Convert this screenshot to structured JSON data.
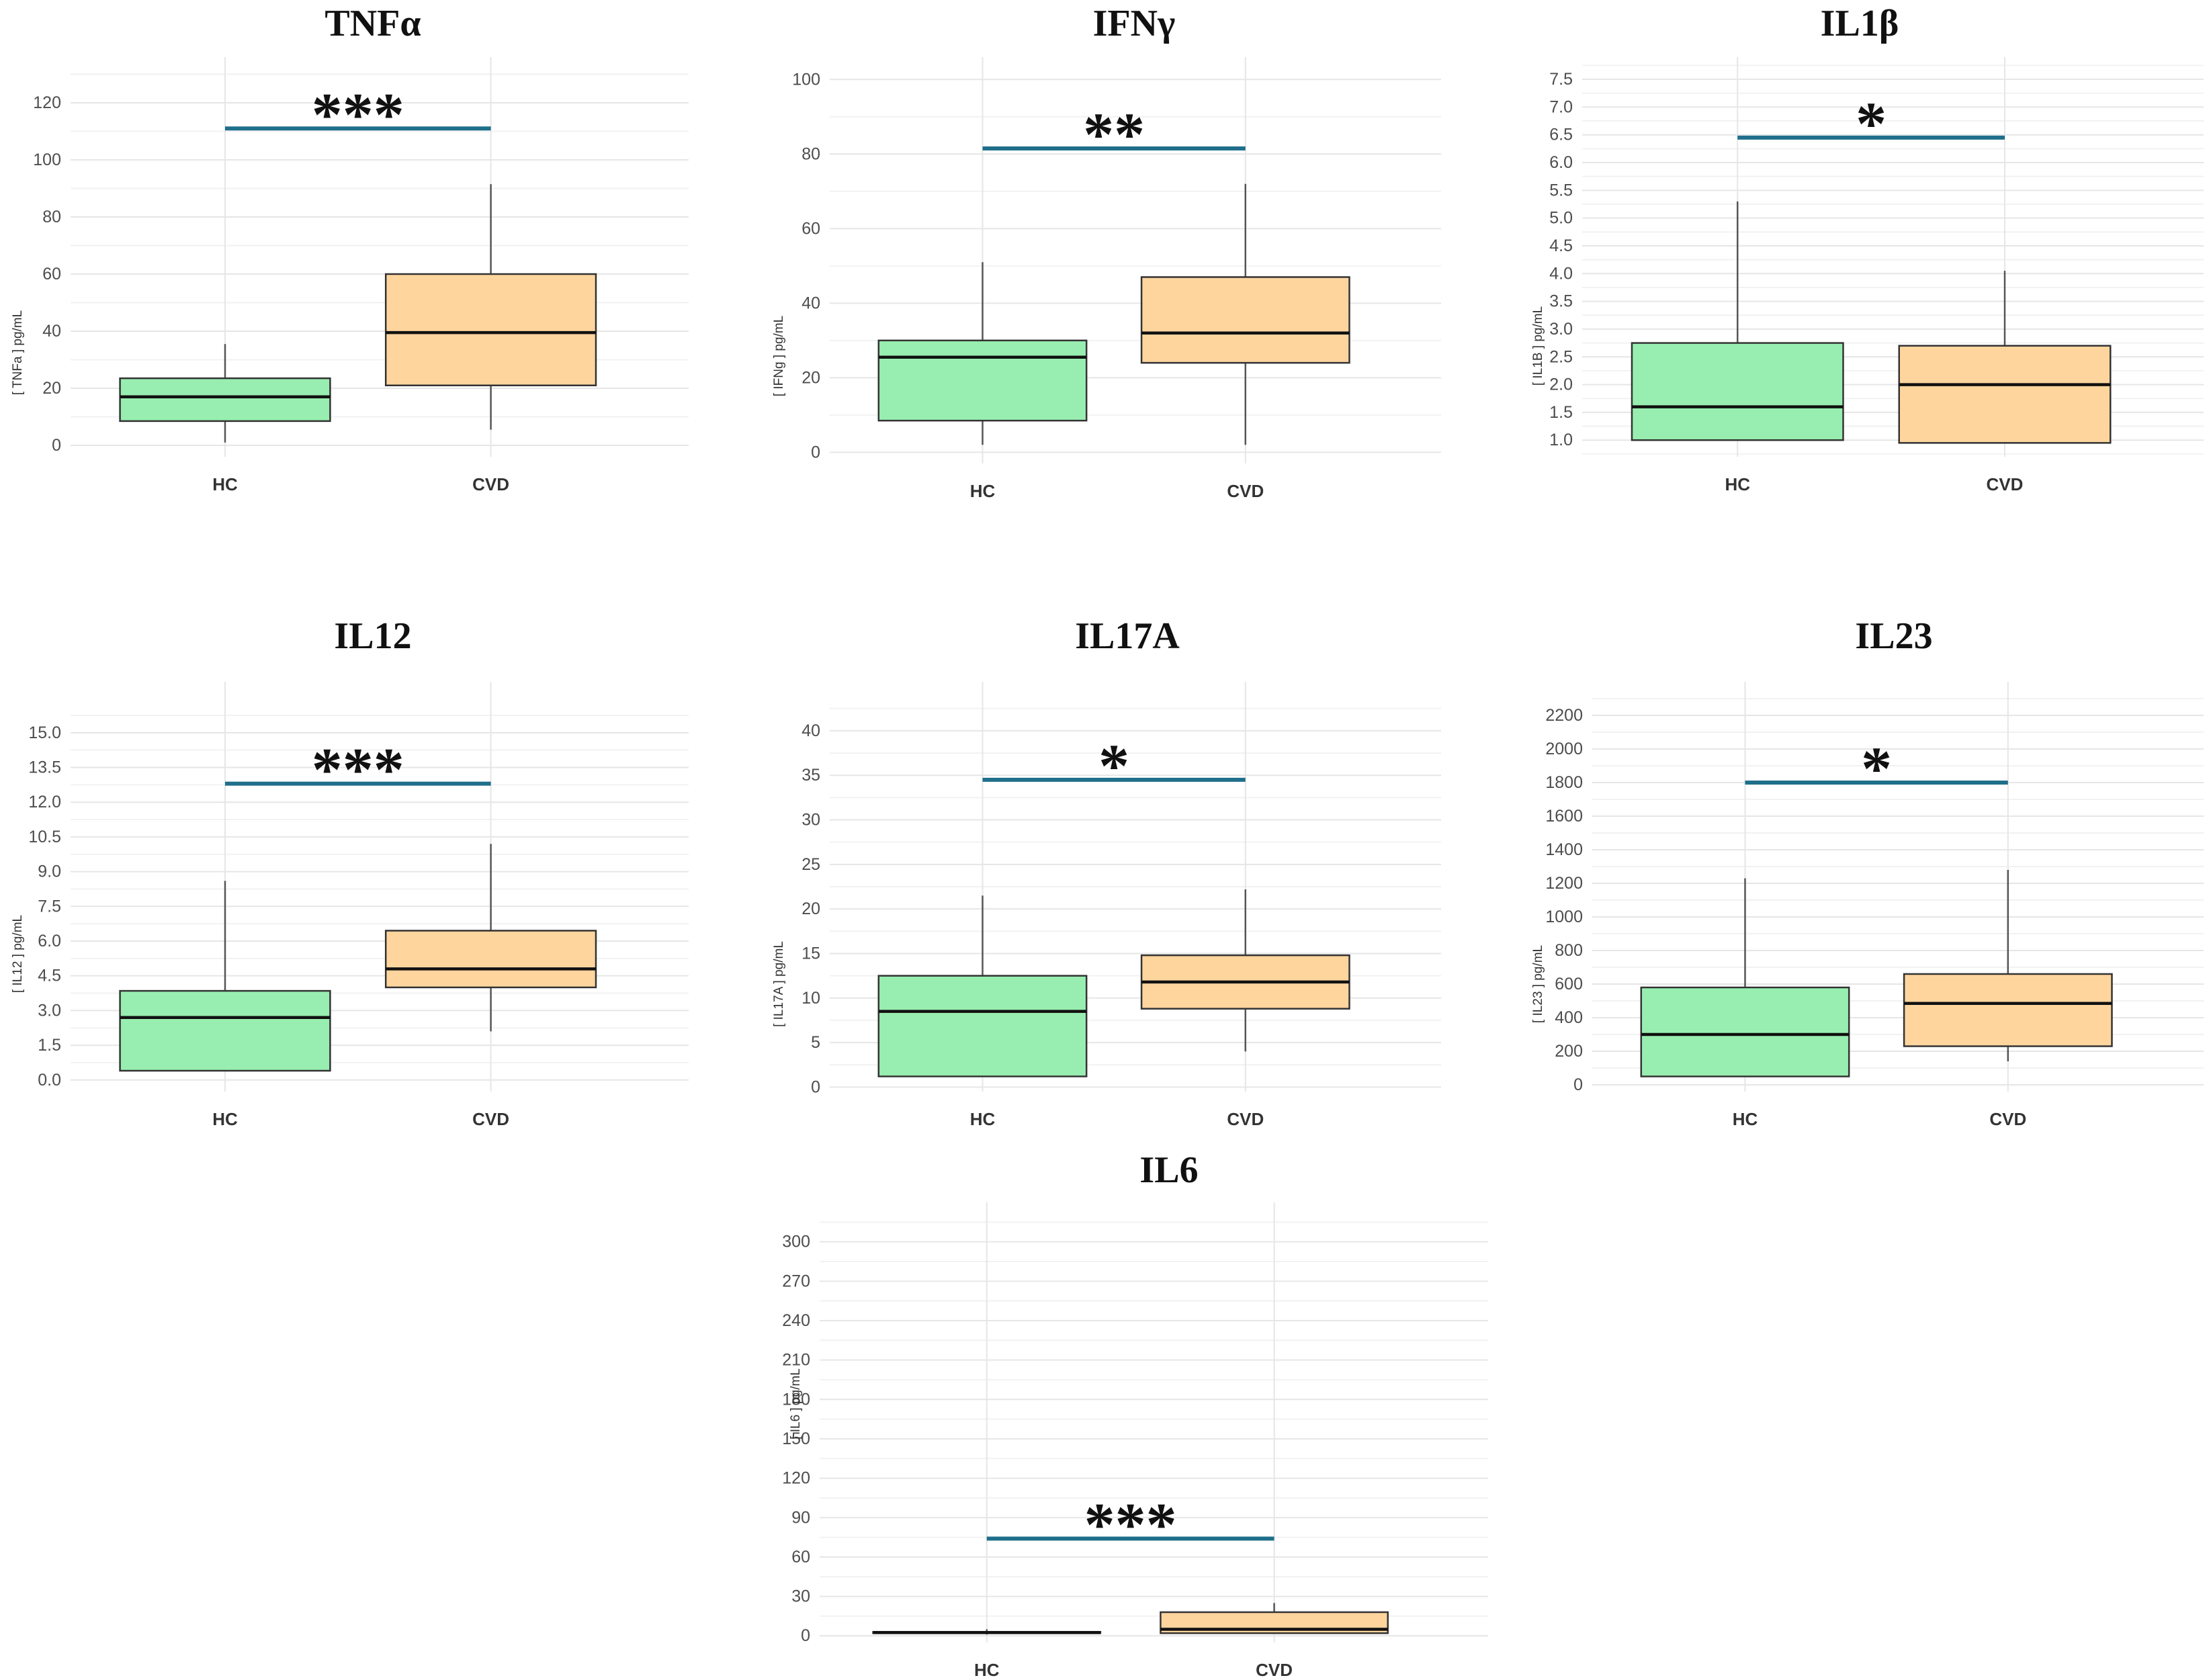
{
  "figure": {
    "background": "#ffffff"
  },
  "style": {
    "hc_fill": "#98EEB0",
    "cvd_fill": "#FFD59E",
    "box_stroke": "#333333",
    "median_stroke": "#111111",
    "whisker_stroke": "#555555",
    "sig_color": "#1F6F8B",
    "grid_major": "#e6e6e6",
    "grid_minor": "#f2f2f2",
    "tick_text": "#4d4d4d"
  },
  "chart_data": [
    {
      "id": "tnfa",
      "type": "boxplot",
      "title": "TNFα",
      "ylabel": "[ TNFa ] pg/mL",
      "xlabel": "",
      "categories": [
        "HC",
        "CVD"
      ],
      "ylim": [
        -4,
        136
      ],
      "yticks": [
        0,
        20,
        40,
        60,
        80,
        100,
        120
      ],
      "yticklabels": [
        "0",
        "20",
        "40",
        "60",
        "80",
        "100",
        "120"
      ],
      "boxes": [
        {
          "group": "HC",
          "whisker_low": 1,
          "q1": 8.5,
          "median": 17,
          "q3": 23.5,
          "whisker_high": 35.5
        },
        {
          "group": "CVD",
          "whisker_low": 5.5,
          "q1": 21,
          "median": 39.5,
          "q3": 60,
          "whisker_high": 91.5
        }
      ],
      "significance": {
        "label": "***",
        "y": 111
      }
    },
    {
      "id": "ifng",
      "type": "boxplot",
      "title": "IFNγ",
      "ylabel": "[ IFNg ] pg/mL",
      "xlabel": "",
      "categories": [
        "HC",
        "CVD"
      ],
      "ylim": [
        -3,
        106
      ],
      "yticks": [
        0,
        20,
        40,
        60,
        80,
        100
      ],
      "yticklabels": [
        "0",
        "20",
        "40",
        "60",
        "80",
        "100"
      ],
      "boxes": [
        {
          "group": "HC",
          "whisker_low": 2,
          "q1": 8.5,
          "median": 25.5,
          "q3": 30,
          "whisker_high": 51
        },
        {
          "group": "CVD",
          "whisker_low": 2,
          "q1": 24,
          "median": 32,
          "q3": 47,
          "whisker_high": 72
        }
      ],
      "significance": {
        "label": "**",
        "y": 81.5
      }
    },
    {
      "id": "il1b",
      "type": "boxplot",
      "title": "IL1β",
      "ylabel": "[ IL1B ] pg/mL",
      "xlabel": "",
      "categories": [
        "HC",
        "CVD"
      ],
      "ylim": [
        0.7,
        7.9
      ],
      "yticks": [
        1.0,
        1.5,
        2.0,
        2.5,
        3.0,
        3.5,
        4.0,
        4.5,
        5.0,
        5.5,
        6.0,
        6.5,
        7.0,
        7.5
      ],
      "yticklabels": [
        "1.0",
        "1.5",
        "2.0",
        "2.5",
        "3.0",
        "3.5",
        "4.0",
        "4.5",
        "5.0",
        "5.5",
        "6.0",
        "6.5",
        "7.0",
        "7.5"
      ],
      "boxes": [
        {
          "group": "HC",
          "whisker_low": 1.0,
          "q1": 1.0,
          "median": 1.6,
          "q3": 2.75,
          "whisker_high": 5.3
        },
        {
          "group": "CVD",
          "whisker_low": 0.95,
          "q1": 0.95,
          "median": 2.0,
          "q3": 2.7,
          "whisker_high": 4.05
        }
      ],
      "significance": {
        "label": "*",
        "y": 6.45
      }
    },
    {
      "id": "il12",
      "type": "boxplot",
      "title": "IL12",
      "ylabel": "[ IL12 ] pg/mL",
      "xlabel": "",
      "categories": [
        "HC",
        "CVD"
      ],
      "ylim": [
        -0.5,
        17.2
      ],
      "yticks": [
        0.0,
        1.5,
        3.0,
        4.5,
        6.0,
        7.5,
        9.0,
        10.5,
        12.0,
        13.5,
        15.0
      ],
      "yticklabels": [
        "0.0",
        "1.5",
        "3.0",
        "4.5",
        "6.0",
        "7.5",
        "9.0",
        "10.5",
        "12.0",
        "13.5",
        "15.0"
      ],
      "boxes": [
        {
          "group": "HC",
          "whisker_low": 0.4,
          "q1": 0.4,
          "median": 2.7,
          "q3": 3.85,
          "whisker_high": 8.6
        },
        {
          "group": "CVD",
          "whisker_low": 2.1,
          "q1": 4.0,
          "median": 4.8,
          "q3": 6.45,
          "whisker_high": 10.2
        }
      ],
      "significance": {
        "label": "***",
        "y": 12.8
      }
    },
    {
      "id": "il17a",
      "type": "boxplot",
      "title": "IL17A",
      "ylabel": "[ IL17A ] pg/mL",
      "xlabel": "",
      "categories": [
        "HC",
        "CVD"
      ],
      "ylim": [
        -0.5,
        45.5
      ],
      "yticks": [
        0,
        5,
        10,
        15,
        20,
        25,
        30,
        35,
        40
      ],
      "yticklabels": [
        "0",
        "5",
        "10",
        "15",
        "20",
        "25",
        "30",
        "35",
        "40"
      ],
      "boxes": [
        {
          "group": "HC",
          "whisker_low": 1.2,
          "q1": 1.2,
          "median": 8.5,
          "q3": 12.5,
          "whisker_high": 21.5
        },
        {
          "group": "CVD",
          "whisker_low": 4,
          "q1": 8.8,
          "median": 11.8,
          "q3": 14.8,
          "whisker_high": 22.2
        }
      ],
      "significance": {
        "label": "*",
        "y": 34.5
      }
    },
    {
      "id": "il23",
      "type": "boxplot",
      "title": "IL23",
      "ylabel": "[ IL23 ] pg/mL",
      "xlabel": "",
      "categories": [
        "HC",
        "CVD"
      ],
      "ylim": [
        -40,
        2400
      ],
      "yticks": [
        0,
        200,
        400,
        600,
        800,
        1000,
        1200,
        1400,
        1600,
        1800,
        2000,
        2200
      ],
      "yticklabels": [
        "0",
        "200",
        "400",
        "600",
        "800",
        "1000",
        "1200",
        "1400",
        "1600",
        "1800",
        "2000",
        "2200"
      ],
      "boxes": [
        {
          "group": "HC",
          "whisker_low": 50,
          "q1": 50,
          "median": 300,
          "q3": 580,
          "whisker_high": 1230
        },
        {
          "group": "CVD",
          "whisker_low": 140,
          "q1": 230,
          "median": 485,
          "q3": 660,
          "whisker_high": 1280
        }
      ],
      "significance": {
        "label": "*",
        "y": 1800
      }
    },
    {
      "id": "il6",
      "type": "boxplot",
      "title": "IL6",
      "ylabel": "[ IL6 ] pg/mL",
      "xlabel": "",
      "categories": [
        "HC",
        "CVD"
      ],
      "ylim": [
        -5,
        330
      ],
      "yticks": [
        0,
        30,
        60,
        90,
        120,
        150,
        180,
        210,
        240,
        270,
        300
      ],
      "yticklabels": [
        "0",
        "30",
        "60",
        "90",
        "120",
        "150",
        "180",
        "210",
        "240",
        "270",
        "300"
      ],
      "boxes": [
        {
          "group": "HC",
          "whisker_low": 1,
          "q1": 2,
          "median": 2.5,
          "q3": 3,
          "whisker_high": 5
        },
        {
          "group": "CVD",
          "whisker_low": 2,
          "q1": 2,
          "median": 5,
          "q3": 18,
          "whisker_high": 25
        }
      ],
      "significance": {
        "label": "***",
        "y": 74
      }
    }
  ]
}
